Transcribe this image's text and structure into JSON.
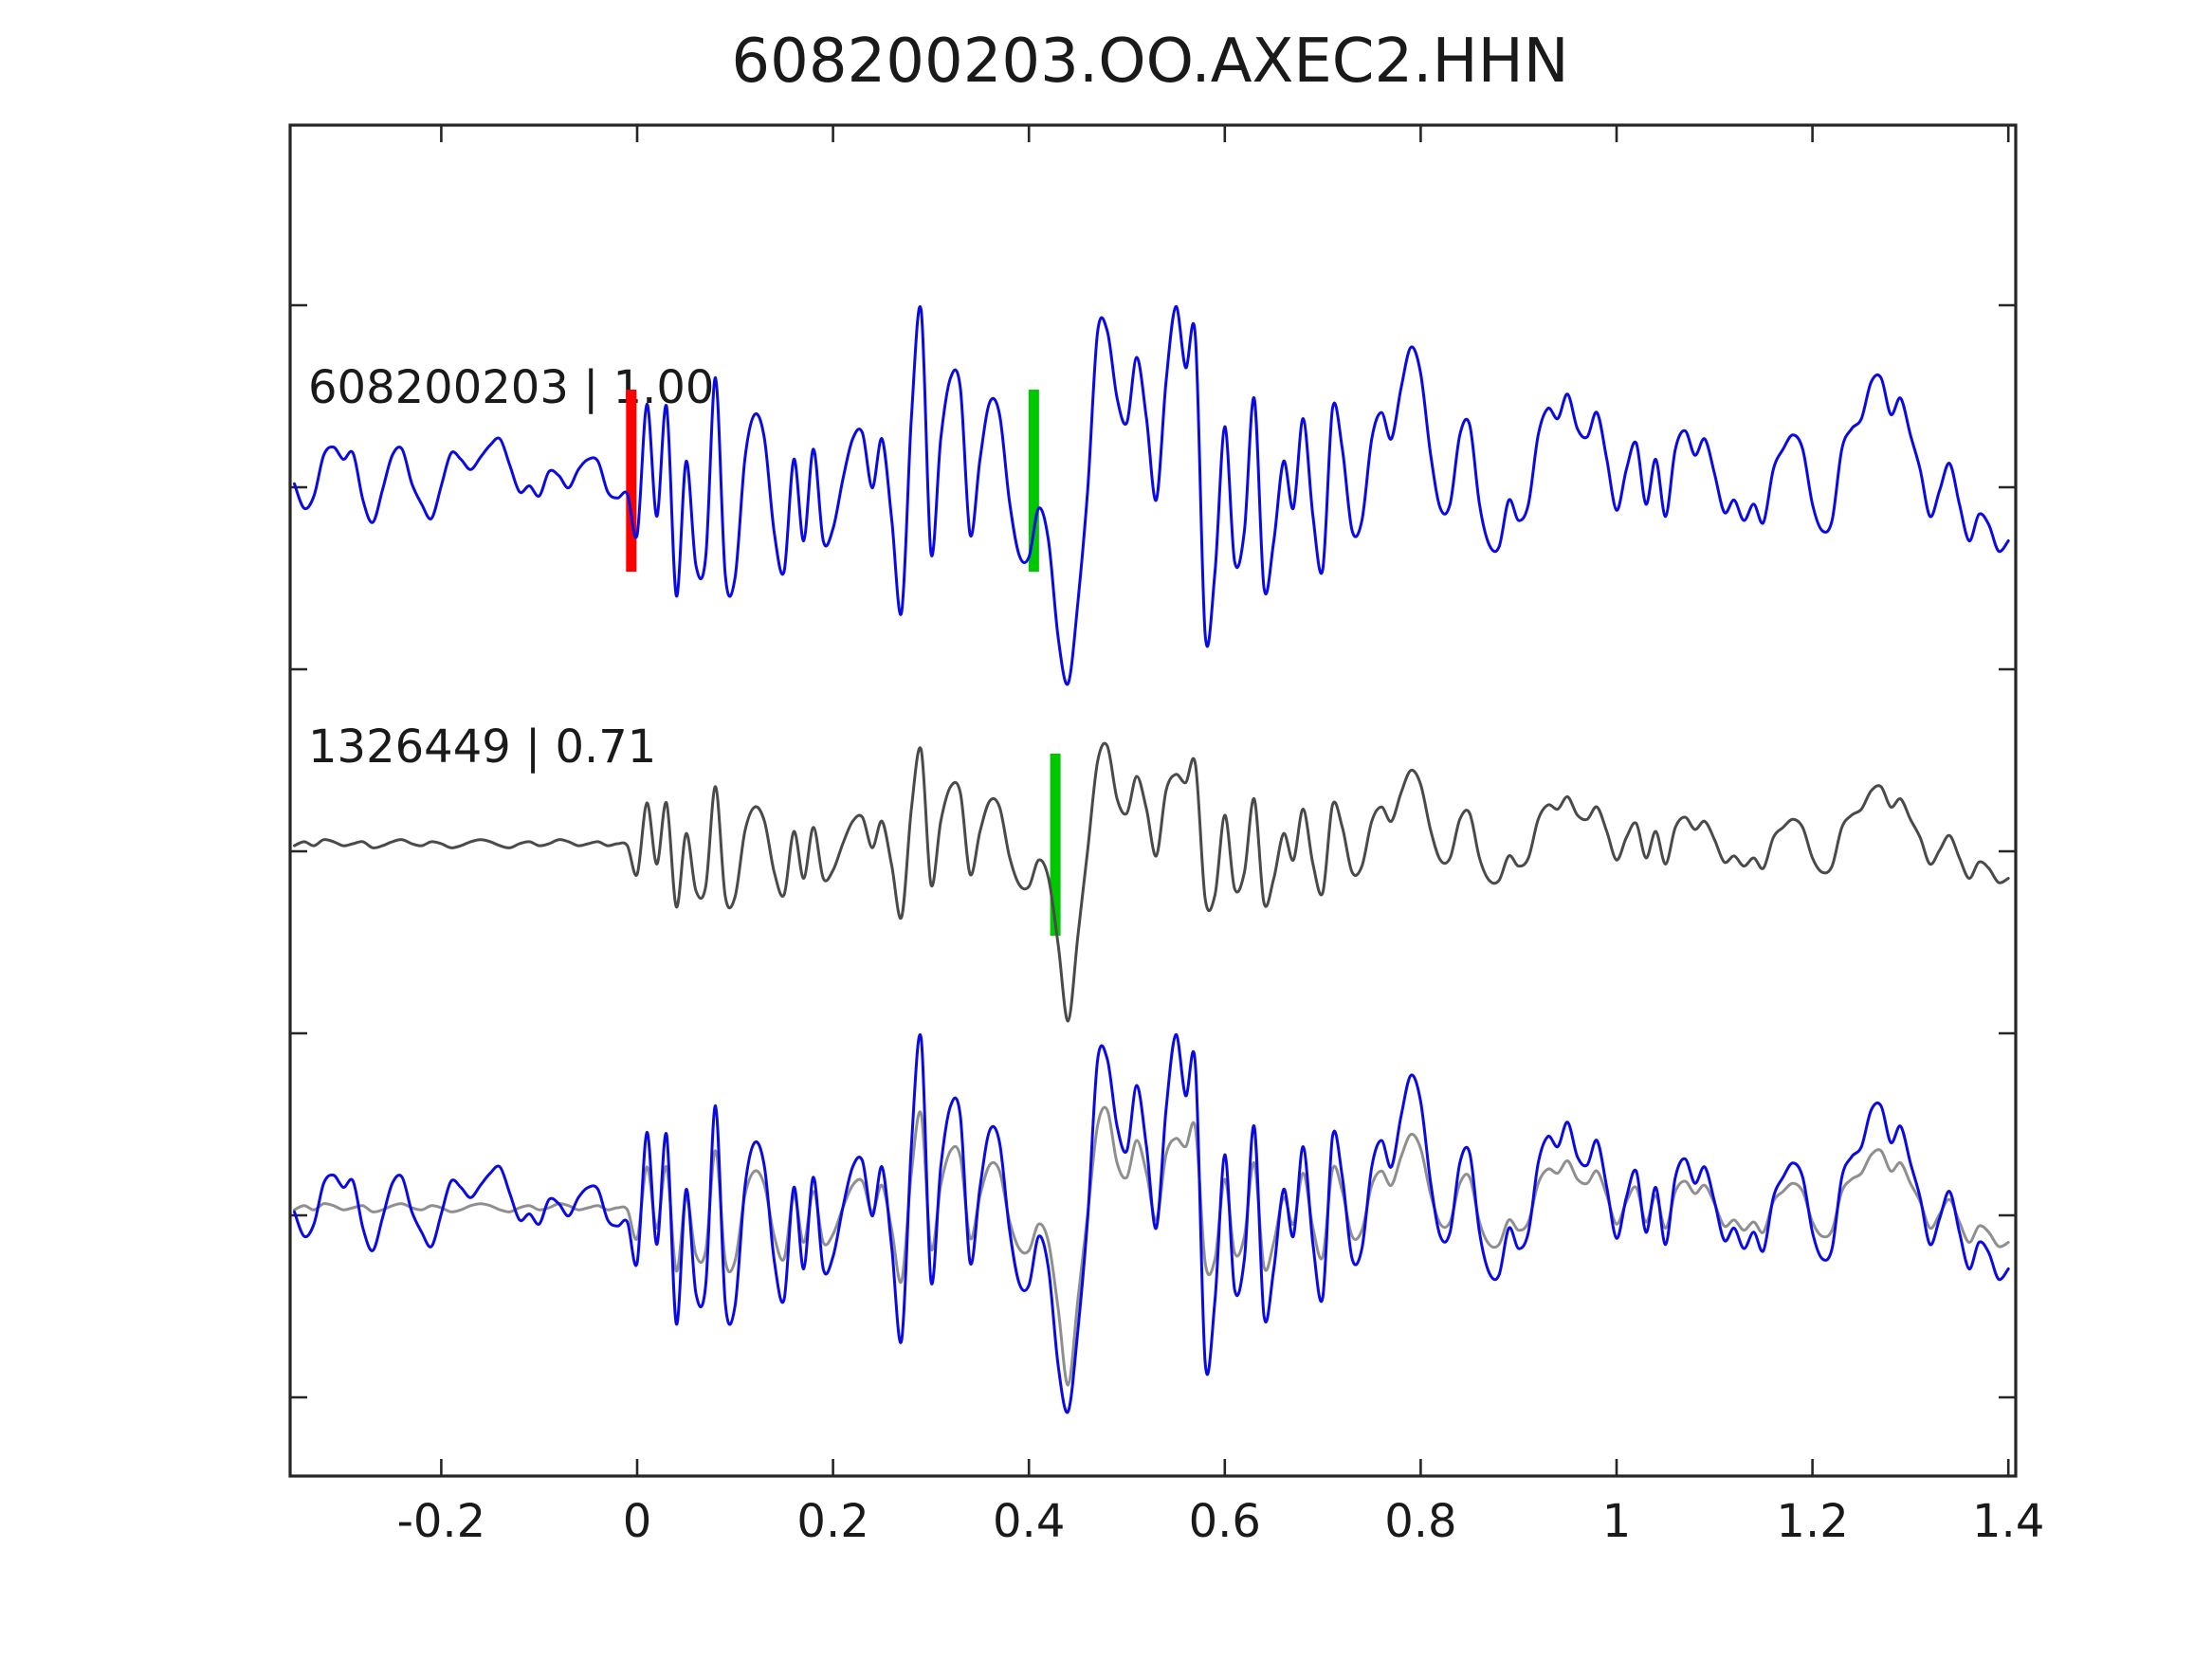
{
  "title": "608200203.OO.AXEC2.HHN",
  "axis": {
    "spine_color": "#262626",
    "tick_color": "#262626",
    "text_color": "#1a1a1a",
    "background": "#ffffff"
  },
  "chart_data": {
    "type": "line",
    "title": "608200203.OO.AXEC2.HHN",
    "xlabel": "",
    "ylabel": "",
    "xlim": [
      -0.355,
      1.41
    ],
    "grid": false,
    "legend": "none",
    "x_ticks": [
      -0.2,
      0,
      0.2,
      0.4,
      0.6,
      0.8,
      1,
      1.2,
      1.4
    ],
    "x_tick_labels": [
      "-0.2",
      "0",
      "0.2",
      "0.4",
      "0.6",
      "0.8",
      "1",
      "1.2",
      "1.4"
    ],
    "x_start": -0.35,
    "dt": 0.01,
    "series": [
      {
        "id": "template",
        "name": "608200203",
        "correlation": "1.00",
        "color": "#0a0ae6",
        "values": [
          -0.02,
          -0.14,
          -0.08,
          0.12,
          0.16,
          0.1,
          0.13,
          -0.1,
          -0.21,
          -0.05,
          0.12,
          0.15,
          -0.02,
          -0.12,
          -0.19,
          -0.03,
          0.13,
          0.1,
          0.05,
          0.11,
          0.17,
          0.2,
          0.07,
          -0.06,
          -0.03,
          -0.08,
          0.04,
          0.02,
          -0.04,
          0.05,
          0.1,
          0.09,
          -0.06,
          -0.09,
          -0.07,
          -0.27,
          0.37,
          -0.18,
          0.36,
          -0.57,
          0.09,
          -0.42,
          -0.38,
          0.5,
          -0.47,
          -0.48,
          0.1,
          0.32,
          0.2,
          -0.26,
          -0.45,
          0.1,
          -0.3,
          0.15,
          -0.3,
          -0.24,
          0.0,
          0.2,
          0.23,
          -0.04,
          0.2,
          -0.2,
          -0.65,
          0.3,
          0.83,
          -0.36,
          0.2,
          0.5,
          0.45,
          -0.27,
          0.1,
          0.38,
          0.32,
          -0.1,
          -0.37,
          -0.38,
          -0.14,
          -0.3,
          -0.78,
          -1.0,
          -0.6,
          -0.05,
          0.72,
          0.73,
          0.4,
          0.28,
          0.6,
          0.3,
          -0.1,
          0.48,
          0.85,
          0.55,
          0.7,
          -0.76,
          -0.45,
          0.26,
          -0.4,
          -0.25,
          0.4,
          -0.53,
          -0.3,
          0.09,
          -0.14,
          0.3,
          -0.18,
          -0.44,
          0.35,
          0.15,
          -0.25,
          -0.2,
          0.2,
          0.33,
          0.2,
          0.45,
          0.65,
          0.52,
          0.13,
          -0.14,
          -0.12,
          0.22,
          0.27,
          -0.12,
          -0.32,
          -0.33,
          -0.1,
          -0.2,
          -0.12,
          0.22,
          0.35,
          0.3,
          0.42,
          0.25,
          0.21,
          0.33,
          0.1,
          -0.15,
          0.05,
          0.18,
          -0.12,
          0.1,
          -0.18,
          0.15,
          0.24,
          0.12,
          0.2,
          0.03,
          -0.16,
          -0.1,
          -0.2,
          -0.12,
          -0.21,
          0.05,
          0.15,
          0.22,
          0.15,
          -0.12,
          -0.25,
          -0.2,
          0.15,
          0.25,
          0.3,
          0.48,
          0.5,
          0.32,
          0.4,
          0.22,
          0.05,
          -0.18,
          -0.05,
          0.08,
          -0.12,
          -0.3,
          -0.17,
          -0.22,
          -0.35,
          -0.3
        ]
      },
      {
        "id": "detection",
        "name": "1326449",
        "correlation": "0.71",
        "color": "#4a4a4a",
        "values": [
          -0.01,
          0.01,
          -0.01,
          0.02,
          0.01,
          -0.01,
          0.0,
          0.01,
          -0.02,
          -0.01,
          0.01,
          0.02,
          0.0,
          -0.01,
          0.01,
          0.0,
          -0.02,
          -0.01,
          0.01,
          0.02,
          0.01,
          -0.01,
          -0.02,
          0.0,
          0.01,
          -0.01,
          0.0,
          0.02,
          0.01,
          -0.01,
          0.0,
          0.01,
          -0.01,
          0.0,
          -0.01,
          -0.15,
          0.2,
          -0.1,
          0.2,
          -0.31,
          0.05,
          -0.23,
          -0.21,
          0.28,
          -0.26,
          -0.26,
          0.06,
          0.18,
          0.11,
          -0.14,
          -0.25,
          0.06,
          -0.17,
          0.08,
          -0.17,
          -0.13,
          0.0,
          0.11,
          0.13,
          -0.02,
          0.11,
          -0.11,
          -0.36,
          0.17,
          0.46,
          -0.2,
          0.11,
          0.28,
          0.25,
          -0.15,
          0.06,
          0.21,
          0.18,
          -0.06,
          -0.2,
          -0.21,
          -0.08,
          -0.17,
          -0.5,
          -0.87,
          -0.45,
          -0.03,
          0.4,
          0.48,
          0.22,
          0.15,
          0.33,
          0.17,
          -0.06,
          0.26,
          0.34,
          0.3,
          0.39,
          -0.27,
          -0.25,
          0.14,
          -0.22,
          -0.14,
          0.22,
          -0.29,
          -0.17,
          0.05,
          -0.08,
          0.17,
          -0.1,
          -0.24,
          0.19,
          0.08,
          -0.14,
          -0.11,
          0.11,
          0.18,
          0.11,
          0.25,
          0.36,
          0.29,
          0.07,
          -0.08,
          -0.07,
          0.12,
          0.15,
          -0.07,
          -0.18,
          -0.18,
          -0.06,
          -0.11,
          -0.07,
          0.12,
          0.19,
          0.17,
          0.23,
          0.14,
          0.12,
          0.18,
          0.06,
          -0.08,
          0.03,
          0.1,
          -0.07,
          0.06,
          -0.1,
          0.08,
          0.13,
          0.07,
          0.11,
          0.02,
          -0.09,
          -0.06,
          -0.11,
          -0.07,
          -0.12,
          0.03,
          0.08,
          0.12,
          0.08,
          -0.07,
          -0.14,
          -0.11,
          0.08,
          0.14,
          0.17,
          0.26,
          0.28,
          0.18,
          0.22,
          0.12,
          0.03,
          -0.1,
          -0.03,
          0.04,
          -0.07,
          -0.17,
          -0.09,
          -0.12,
          -0.19,
          -0.17
        ]
      }
    ],
    "rows": [
      {
        "label": "608200203 | 1.00",
        "traces": [
          {
            "series": "template",
            "color": "#0a0ae6"
          }
        ],
        "markers": [
          {
            "name": "template-start-marker",
            "color": "#ff0000",
            "t": -0.006
          },
          {
            "name": "pick-time-marker",
            "color": "#00c800",
            "t": 0.405
          }
        ]
      },
      {
        "label": "1326449 | 0.71",
        "traces": [
          {
            "series": "detection",
            "color": "#4a4a4a"
          }
        ],
        "markers": [
          {
            "name": "pick-time-marker",
            "color": "#00c800",
            "t": 0.427
          }
        ]
      },
      {
        "label": "",
        "traces": [
          {
            "series": "detection",
            "color": "#8f8f8f"
          },
          {
            "series": "template",
            "color": "#0a0ae6"
          }
        ],
        "markers": []
      }
    ]
  }
}
